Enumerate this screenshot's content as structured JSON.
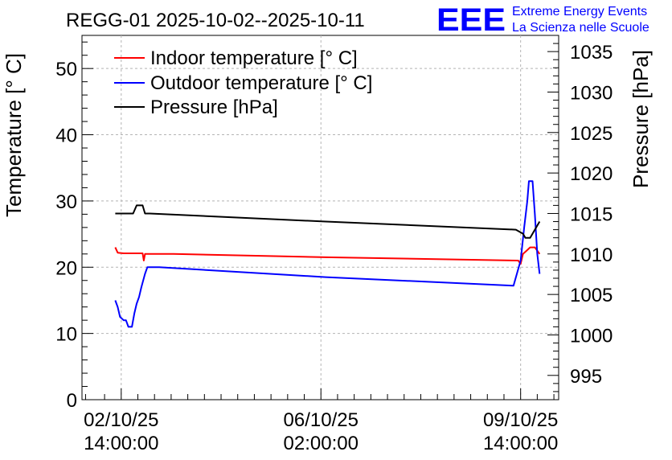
{
  "title": "REGG-01 2025-10-02--2025-10-11",
  "logo": {
    "mark": "EEE",
    "line1": "Extreme Energy Events",
    "line2": "La Scienza nelle Scuole",
    "color": "#0000ff"
  },
  "chart_data": {
    "type": "line",
    "title": "REGG-01 2025-10-02--2025-10-11",
    "x_axis": {
      "unit": "hours since 2025-10-02 00:00",
      "range": [
        -2.5,
        198
      ],
      "tick_labels": [
        {
          "x": 14,
          "line1": "02/10/25",
          "line2": "14:00:00"
        },
        {
          "x": 98,
          "line1": "06/10/25",
          "line2": "02:00:00"
        },
        {
          "x": 182,
          "line1": "09/10/25",
          "line2": "14:00:00"
        }
      ],
      "minor_ticks": [
        -1,
        7,
        21,
        28,
        35,
        42,
        49,
        56,
        63,
        70,
        77,
        84,
        91,
        105,
        112,
        119,
        126,
        133,
        140,
        147,
        154,
        161,
        168,
        175,
        189,
        196
      ]
    },
    "y_left": {
      "label": "Temperature [° C]",
      "range": [
        0,
        55
      ],
      "ticks": [
        0,
        10,
        20,
        30,
        40,
        50
      ]
    },
    "y_right": {
      "label": "Pressure [hPa]",
      "range": [
        992,
        1037
      ],
      "ticks": [
        995,
        1000,
        1005,
        1010,
        1015,
        1020,
        1025,
        1030,
        1035
      ]
    },
    "grid": true,
    "legend_position": "top-left",
    "series": [
      {
        "name": "Indoor temperature [° C]",
        "color": "#ff0000",
        "axis": "left",
        "points": [
          [
            11.5,
            23
          ],
          [
            12.5,
            22.2
          ],
          [
            15,
            22.1
          ],
          [
            23,
            22.1
          ],
          [
            23.5,
            21
          ],
          [
            24,
            22.0
          ],
          [
            26,
            22.0
          ],
          [
            36,
            22.0
          ],
          [
            100,
            21.5
          ],
          [
            181,
            21.0
          ],
          [
            182,
            20.5
          ],
          [
            183,
            22
          ],
          [
            184.5,
            22.5
          ],
          [
            186,
            23
          ],
          [
            188,
            23
          ],
          [
            189,
            22.5
          ],
          [
            190,
            22.0
          ]
        ]
      },
      {
        "name": "Outdoor temperature [° C]",
        "color": "#0000ff",
        "axis": "left",
        "points": [
          [
            11.5,
            15
          ],
          [
            12.5,
            14
          ],
          [
            13.5,
            12.5
          ],
          [
            15,
            12
          ],
          [
            16,
            12
          ],
          [
            17,
            11
          ],
          [
            18.5,
            11
          ],
          [
            19.5,
            13
          ],
          [
            20.5,
            14.5
          ],
          [
            21.5,
            15.5
          ],
          [
            22.5,
            17
          ],
          [
            24,
            19
          ],
          [
            25,
            20
          ],
          [
            30,
            20
          ],
          [
            100,
            18.5
          ],
          [
            179,
            17.2
          ],
          [
            182,
            21
          ],
          [
            183.5,
            26
          ],
          [
            184.8,
            30
          ],
          [
            185.5,
            33
          ],
          [
            187,
            33
          ],
          [
            188,
            28
          ],
          [
            189,
            22
          ],
          [
            190,
            19
          ]
        ]
      },
      {
        "name": "Pressure [hPa]",
        "color": "#000000",
        "axis": "right",
        "points": [
          [
            11.5,
            1015
          ],
          [
            19,
            1015
          ],
          [
            20.5,
            1016
          ],
          [
            23,
            1016
          ],
          [
            24,
            1015
          ],
          [
            26,
            1015
          ],
          [
            100,
            1014
          ],
          [
            180,
            1013
          ],
          [
            183,
            1012.5
          ],
          [
            184,
            1012
          ],
          [
            186,
            1012
          ],
          [
            187,
            1012.5
          ],
          [
            190,
            1014
          ]
        ]
      }
    ]
  }
}
